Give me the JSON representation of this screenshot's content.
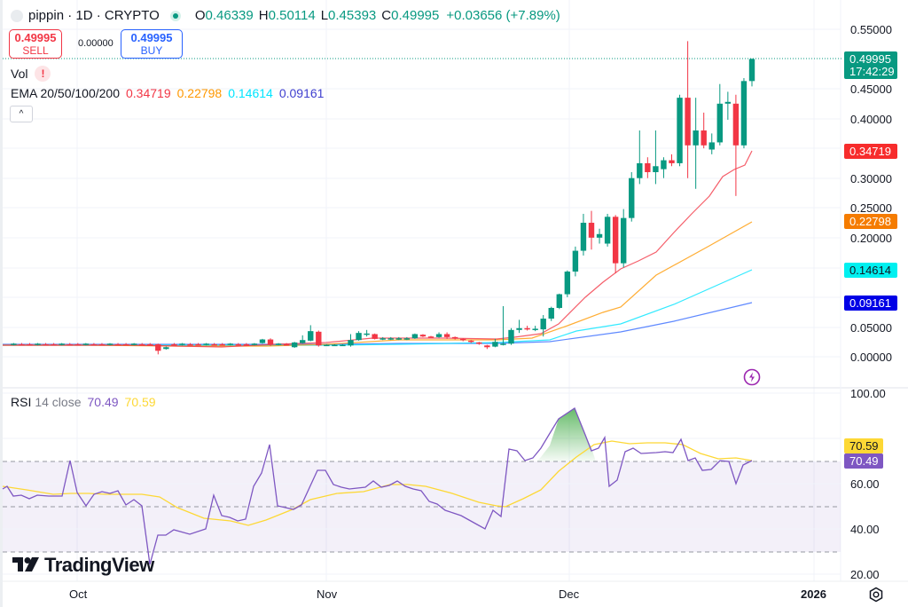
{
  "header": {
    "title": "pippin · 1D · CRYPTO",
    "ohlc": {
      "o_label": "O",
      "o": "0.46339",
      "h_label": "H",
      "h": "0.50114",
      "l_label": "L",
      "l": "0.45393",
      "c_label": "C",
      "c": "0.49995",
      "change": "+0.03656 (+7.89%)"
    }
  },
  "trade": {
    "sell_price": "0.49995",
    "sell_label": "SELL",
    "spread": "0.00000",
    "buy_price": "0.49995",
    "buy_label": "BUY"
  },
  "indicators": {
    "vol_label": "Vol",
    "vol_warning": "!",
    "ema_label": "EMA 20/50/100/200",
    "ema20": "0.34719",
    "ema50": "0.22798",
    "ema100": "0.14614",
    "ema200": "0.09161",
    "collapse_icon": "^"
  },
  "rsi": {
    "label": "RSI",
    "params": "14 close",
    "value": "70.49",
    "ma_value": "70.59"
  },
  "price_axis": {
    "ticks": [
      "0.55000",
      "0.45000",
      "0.40000",
      "0.30000",
      "0.25000",
      "0.20000",
      "0.05000",
      "0.00000"
    ],
    "last_price": "0.49995",
    "countdown": "17:42:29",
    "ema20_tag": "0.34719",
    "ema50_tag": "0.22798",
    "ema100_tag": "0.14614",
    "ema200_tag": "0.09161"
  },
  "rsi_axis": {
    "ticks": [
      "100.00",
      "60.00",
      "40.00",
      "20.00"
    ],
    "rsi_tag": "70.49",
    "ma_tag": "70.59"
  },
  "time_axis": {
    "labels": [
      "Oct",
      "Nov",
      "Dec",
      "2026"
    ]
  },
  "branding": {
    "logo_text": "TradingView"
  },
  "colors": {
    "up": "#089981",
    "down": "#f23645",
    "ema20": "#f23645",
    "ema50": "#ff9800",
    "ema100": "#00e5ff",
    "ema200": "#2962ff",
    "rsi": "#7e57c2",
    "rsi_ma": "#fdd835"
  },
  "chart_data": [
    {
      "type": "candlestick",
      "title": "pippin · 1D · CRYPTO",
      "xlabel": "",
      "ylabel": "Price",
      "ylim": [
        0,
        0.55
      ],
      "x_ticks": [
        "Oct",
        "Nov",
        "Dec",
        "2026"
      ],
      "y_ticks": [
        0,
        0.05,
        0.1,
        0.15,
        0.2,
        0.25,
        0.3,
        0.35,
        0.4,
        0.45,
        0.5,
        0.55
      ],
      "grid": true,
      "series": [
        {
          "name": "EMA 20",
          "last": 0.34719
        },
        {
          "name": "EMA 50",
          "last": 0.22798
        },
        {
          "name": "EMA 100",
          "last": 0.14614
        },
        {
          "name": "EMA 200",
          "last": 0.09161
        }
      ],
      "candles_recent": [
        {
          "o": 0.021,
          "h": 0.085,
          "l": 0.019,
          "c": 0.022
        },
        {
          "o": 0.022,
          "h": 0.048,
          "l": 0.02,
          "c": 0.045
        },
        {
          "o": 0.045,
          "h": 0.062,
          "l": 0.04,
          "c": 0.048
        },
        {
          "o": 0.048,
          "h": 0.052,
          "l": 0.044,
          "c": 0.047
        },
        {
          "o": 0.046,
          "h": 0.052,
          "l": 0.043,
          "c": 0.047
        },
        {
          "o": 0.046,
          "h": 0.07,
          "l": 0.034,
          "c": 0.064
        },
        {
          "o": 0.064,
          "h": 0.084,
          "l": 0.06,
          "c": 0.082
        },
        {
          "o": 0.082,
          "h": 0.106,
          "l": 0.08,
          "c": 0.105
        },
        {
          "o": 0.105,
          "h": 0.145,
          "l": 0.1,
          "c": 0.143
        },
        {
          "o": 0.143,
          "h": 0.185,
          "l": 0.135,
          "c": 0.178
        },
        {
          "o": 0.178,
          "h": 0.24,
          "l": 0.17,
          "c": 0.225
        },
        {
          "o": 0.225,
          "h": 0.245,
          "l": 0.18,
          "c": 0.2
        },
        {
          "o": 0.2,
          "h": 0.215,
          "l": 0.19,
          "c": 0.206
        },
        {
          "o": 0.19,
          "h": 0.24,
          "l": 0.185,
          "c": 0.235
        },
        {
          "o": 0.235,
          "h": 0.238,
          "l": 0.14,
          "c": 0.157
        },
        {
          "o": 0.157,
          "h": 0.248,
          "l": 0.15,
          "c": 0.233
        },
        {
          "o": 0.233,
          "h": 0.31,
          "l": 0.227,
          "c": 0.3
        },
        {
          "o": 0.3,
          "h": 0.38,
          "l": 0.29,
          "c": 0.325
        },
        {
          "o": 0.325,
          "h": 0.335,
          "l": 0.3,
          "c": 0.31
        },
        {
          "o": 0.31,
          "h": 0.38,
          "l": 0.29,
          "c": 0.32
        },
        {
          "o": 0.315,
          "h": 0.335,
          "l": 0.3,
          "c": 0.33
        },
        {
          "o": 0.33,
          "h": 0.34,
          "l": 0.32,
          "c": 0.325
        },
        {
          "o": 0.325,
          "h": 0.44,
          "l": 0.32,
          "c": 0.435
        },
        {
          "o": 0.435,
          "h": 0.53,
          "l": 0.3,
          "c": 0.355
        },
        {
          "o": 0.355,
          "h": 0.435,
          "l": 0.282,
          "c": 0.38
        },
        {
          "o": 0.38,
          "h": 0.41,
          "l": 0.35,
          "c": 0.355
        },
        {
          "o": 0.348,
          "h": 0.375,
          "l": 0.34,
          "c": 0.36
        },
        {
          "o": 0.36,
          "h": 0.458,
          "l": 0.355,
          "c": 0.425
        },
        {
          "o": 0.425,
          "h": 0.445,
          "l": 0.398,
          "c": 0.428
        },
        {
          "o": 0.425,
          "h": 0.44,
          "l": 0.27,
          "c": 0.355
        },
        {
          "o": 0.355,
          "h": 0.468,
          "l": 0.35,
          "c": 0.463
        },
        {
          "o": 0.463,
          "h": 0.501,
          "l": 0.454,
          "c": 0.5
        }
      ]
    },
    {
      "type": "line",
      "title": "RSI 14 close",
      "ylim": [
        20,
        100
      ],
      "y_ticks": [
        20,
        40,
        60,
        80,
        100
      ],
      "bands": {
        "upper": 70,
        "middle": 50,
        "lower": 30
      },
      "series": [
        {
          "name": "RSI",
          "last": 70.49
        },
        {
          "name": "RSI MA",
          "last": 70.59
        }
      ],
      "annotations": [
        "Overbought fill above 70 in early December, peaking near 93"
      ]
    }
  ]
}
